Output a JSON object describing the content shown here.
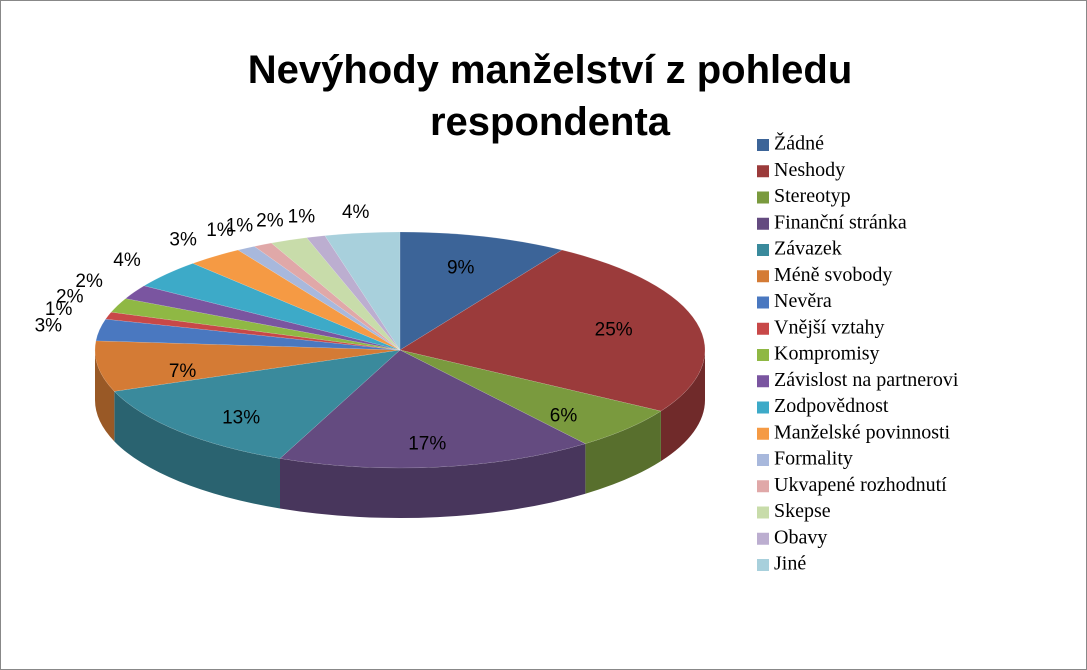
{
  "chart_data": {
    "type": "pie3d",
    "title": "Nevýhody manželství z pohledu respondenta",
    "categories": [
      "Žádné",
      "Neshody",
      "Stereotyp",
      "Finanční stránka",
      "Závazek",
      "Méně svobody",
      "Nevěra",
      "Vnější vztahy",
      "Kompromisy",
      "Závislost na partnerovi",
      "Zodpovědnost",
      "Manželské povinnosti",
      "Formality",
      "Ukvapené rozhodnutí",
      "Skepse",
      "Obavy",
      "Jiné"
    ],
    "values": [
      9,
      25,
      6,
      17,
      13,
      7,
      3,
      1,
      2,
      2,
      4,
      3,
      1,
      1,
      2,
      1,
      4
    ],
    "value_labels": [
      "9%",
      "25%",
      "6%",
      "17%",
      "13%",
      "7%",
      "3%",
      "1%",
      "2%",
      "2%",
      "4%",
      "3%",
      "1%",
      "1%",
      "2%",
      "1%",
      "4%"
    ],
    "colors": [
      "#3c6498",
      "#9b3b3b",
      "#7a9a3e",
      "#644b80",
      "#3a8a9c",
      "#d47b35",
      "#4a78c0",
      "#c84848",
      "#8fb844",
      "#7a55a0",
      "#3daac8",
      "#f59a44",
      "#a8b8dc",
      "#e0a8a8",
      "#c8dcaa",
      "#bcaed0",
      "#a8d0dc"
    ],
    "legend": "right"
  }
}
